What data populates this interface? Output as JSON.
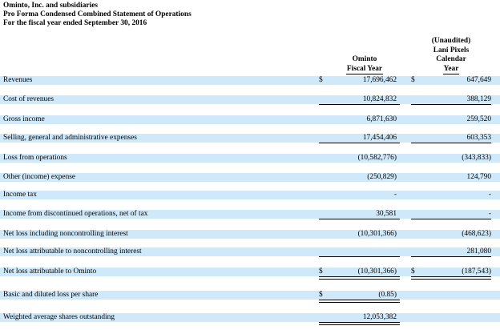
{
  "header": {
    "company": "Ominto, Inc. and subsidiaries",
    "statement": "Pro Forma Condensed Combined Statement of Operations",
    "period": "For the fiscal year ended September 30, 2016"
  },
  "columns": {
    "col1": [
      "Ominto",
      "Fiscal Year"
    ],
    "col2": [
      "(Unaudited)",
      "Lani Pixels",
      "Calendar",
      "Year"
    ]
  },
  "currency_symbol": "$",
  "rows": [
    {
      "label": "Revenues",
      "col1": "17,696,462",
      "col2": "647,649",
      "dollar1": "$",
      "dollar2": "$"
    },
    {
      "label": "Cost of revenues",
      "col1": "10,824,832",
      "col2": "388,129",
      "dollar1": "",
      "dollar2": ""
    },
    {
      "label": "Gross income",
      "col1": "6,871,630",
      "col2": "259,520",
      "dollar1": "",
      "dollar2": ""
    },
    {
      "label": "Selling, general and administrative expenses",
      "col1": "17,454,406",
      "col2": "603,353",
      "dollar1": "",
      "dollar2": ""
    },
    {
      "label": "Loss from operations",
      "col1": "(10,582,776)",
      "col2": "(343,833)",
      "dollar1": "",
      "dollar2": ""
    },
    {
      "label": "Other (income) expense",
      "col1": "(250,829)",
      "col2": "124,790",
      "dollar1": "",
      "dollar2": ""
    },
    {
      "label": "Income tax",
      "col1": "-",
      "col2": "-",
      "dollar1": "",
      "dollar2": ""
    },
    {
      "label": "Income from discontinued operations, net of tax",
      "col1": "30,581",
      "col2": "-",
      "dollar1": "",
      "dollar2": ""
    },
    {
      "label": "Net loss including noncontrolling interest",
      "col1": "(10,301,366)",
      "col2": "(468,623)",
      "dollar1": "",
      "dollar2": ""
    },
    {
      "label": "Net loss attributable to noncontrolling interest",
      "col1": "",
      "col2": "281,080",
      "dollar1": "",
      "dollar2": ""
    },
    {
      "label": "Net loss attributable to Ominto",
      "col1": "(10,301,366)",
      "col2": "(187,543)",
      "dollar1": "$",
      "dollar2": "$"
    },
    {
      "label": "Basic and diluted loss per share",
      "col1": "(0.85)",
      "col2": "",
      "dollar1": "$",
      "dollar2": ""
    },
    {
      "label": "Weighted average shares outstanding",
      "col1": "12,053,382",
      "col2": "",
      "dollar1": "",
      "dollar2": ""
    }
  ]
}
